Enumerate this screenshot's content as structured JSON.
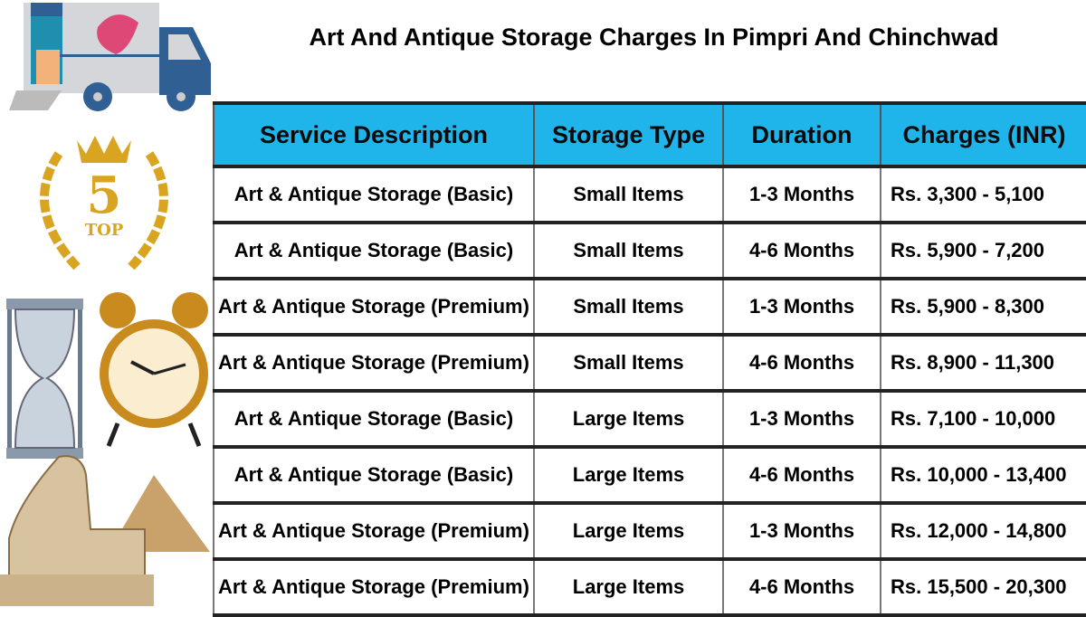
{
  "title": "Art And Antique Storage Charges In Pimpri And Chinchwad",
  "badge": {
    "number": "5",
    "text": "TOP"
  },
  "table": {
    "headers": [
      "Service Description",
      "Storage Type",
      "Duration",
      "Charges (INR)"
    ],
    "rows": [
      [
        "Art & Antique Storage (Basic)",
        "Small Items",
        "1-3 Months",
        "Rs. 3,300 - 5,100"
      ],
      [
        "Art & Antique Storage (Basic)",
        "Small Items",
        "4-6 Months",
        "Rs. 5,900 - 7,200"
      ],
      [
        "Art & Antique Storage (Premium)",
        "Small Items",
        "1-3 Months",
        "Rs. 5,900 - 8,300"
      ],
      [
        "Art & Antique Storage (Premium)",
        "Small Items",
        "4-6 Months",
        "Rs. 8,900 - 11,300"
      ],
      [
        "Art & Antique Storage (Basic)",
        "Large Items",
        "1-3 Months",
        "Rs. 7,100 - 10,000"
      ],
      [
        "Art & Antique Storage (Basic)",
        "Large Items",
        "4-6 Months",
        "Rs. 10,000 - 13,400"
      ],
      [
        "Art & Antique Storage (Premium)",
        "Large Items",
        "1-3 Months",
        "Rs. 12,000 - 14,800"
      ],
      [
        "Art & Antique Storage (Premium)",
        "Large Items",
        "4-6 Months",
        "Rs. 15,500 - 20,300"
      ]
    ]
  },
  "colors": {
    "header": "#1fb4ea",
    "truck": "#2f5f93",
    "gold": "#d9a521"
  }
}
